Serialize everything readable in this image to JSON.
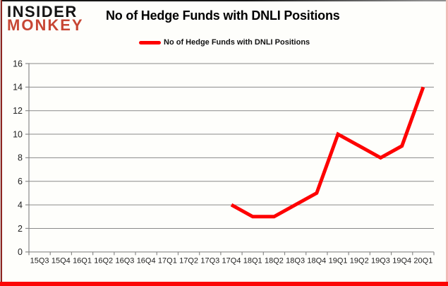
{
  "logo": {
    "line1": "INSIDER",
    "line2": "MONKEY",
    "accent_color": "#c74634"
  },
  "chart_data": {
    "type": "line",
    "title": "No of Hedge Funds with DNLI Positions",
    "categories": [
      "15Q3",
      "15Q4",
      "16Q1",
      "16Q2",
      "16Q3",
      "16Q4",
      "17Q1",
      "17Q2",
      "17Q3",
      "17Q4",
      "18Q1",
      "18Q2",
      "18Q3",
      "18Q4",
      "19Q1",
      "19Q2",
      "19Q3",
      "19Q4",
      "20Q1"
    ],
    "series": [
      {
        "name": "No of Hedge Funds with DNLI Positions",
        "color": "#fe0000",
        "values": [
          null,
          null,
          null,
          null,
          null,
          null,
          null,
          null,
          null,
          4,
          3,
          3,
          4,
          5,
          10,
          9,
          8,
          9,
          14
        ]
      }
    ],
    "ylim": [
      0,
      16
    ],
    "yticks": [
      0,
      2,
      4,
      6,
      8,
      10,
      12,
      14,
      16
    ],
    "xlabel": "",
    "ylabel": "",
    "grid": true,
    "legend_position": "top"
  },
  "colors": {
    "grid": "#8a8a8a",
    "axis_text": "#1f1f1f",
    "frame_bottom": "#fc0606",
    "frame_left": "#8d2521",
    "frame_right": "#f2bab6"
  }
}
